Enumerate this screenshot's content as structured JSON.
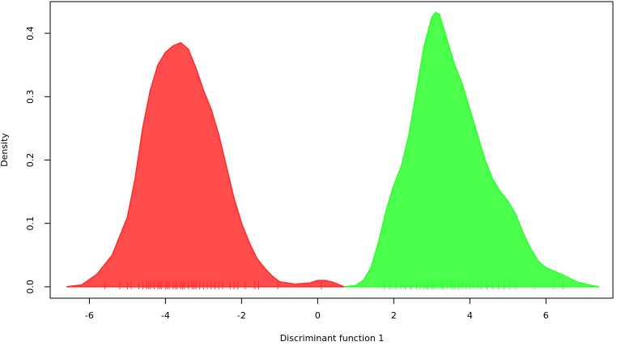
{
  "chart_data": {
    "type": "density",
    "xlabel": "Discriminant function 1",
    "ylabel": "Density",
    "xlim": [
      -7.03,
      7.76
    ],
    "ylim": [
      -0.018,
      0.45
    ],
    "xticks": [
      -6,
      -4,
      -2,
      0,
      2,
      4,
      6
    ],
    "yticks": [
      {
        "value": 0,
        "label": "0.0"
      },
      0.1,
      0.2,
      0.3,
      0.4
    ],
    "series": [
      {
        "color": "#ff4c4c",
        "stroke": "#ff2a2a",
        "x": [
          -6.6,
          -6.2,
          -5.8,
          -5.4,
          -5.0,
          -4.8,
          -4.6,
          -4.4,
          -4.2,
          -4.0,
          -3.8,
          -3.6,
          -3.4,
          -3.2,
          -3.0,
          -2.8,
          -2.6,
          -2.4,
          -2.2,
          -2.0,
          -1.8,
          -1.6,
          -1.4,
          -1.2,
          -1.0,
          -0.6,
          -0.2,
          0.0,
          0.2,
          0.4,
          0.7
        ],
        "values": [
          0.0,
          0.003,
          0.02,
          0.05,
          0.11,
          0.17,
          0.25,
          0.31,
          0.35,
          0.37,
          0.38,
          0.385,
          0.375,
          0.345,
          0.31,
          0.28,
          0.24,
          0.19,
          0.14,
          0.1,
          0.07,
          0.045,
          0.03,
          0.017,
          0.008,
          0.004,
          0.006,
          0.01,
          0.01,
          0.007,
          0.0
        ],
        "rug": [
          -5.6,
          -5.2,
          -5.0,
          -4.9,
          -4.7,
          -4.6,
          -4.5,
          -4.45,
          -4.4,
          -4.3,
          -4.2,
          -4.15,
          -4.1,
          -4.0,
          -3.95,
          -3.9,
          -3.8,
          -3.75,
          -3.7,
          -3.6,
          -3.55,
          -3.5,
          -3.4,
          -3.3,
          -3.25,
          -3.2,
          -3.1,
          -3.0,
          -2.9,
          -2.8,
          -2.7,
          -2.6,
          -2.5,
          -2.3,
          -2.2,
          -2.1,
          -1.9,
          -1.65,
          -1.55,
          -1.05,
          0.1
        ]
      },
      {
        "color": "#4cff4c",
        "stroke": "#2aff2a",
        "x": [
          0.7,
          1.0,
          1.2,
          1.4,
          1.6,
          1.8,
          2.0,
          2.2,
          2.4,
          2.6,
          2.8,
          3.0,
          3.1,
          3.2,
          3.4,
          3.6,
          3.8,
          4.0,
          4.2,
          4.4,
          4.6,
          4.8,
          5.0,
          5.2,
          5.4,
          5.6,
          5.8,
          6.0,
          6.4,
          6.8,
          7.2,
          7.4
        ],
        "values": [
          0.0,
          0.002,
          0.01,
          0.03,
          0.07,
          0.12,
          0.16,
          0.19,
          0.24,
          0.31,
          0.38,
          0.425,
          0.433,
          0.43,
          0.39,
          0.35,
          0.32,
          0.28,
          0.24,
          0.2,
          0.17,
          0.15,
          0.135,
          0.115,
          0.085,
          0.06,
          0.04,
          0.03,
          0.02,
          0.008,
          0.002,
          0.0
        ],
        "rug": [
          1.75,
          1.9,
          2.05,
          2.2,
          2.3,
          2.45,
          2.6,
          2.7,
          2.8,
          2.85,
          2.9,
          3.0,
          3.05,
          3.1,
          3.2,
          3.25,
          3.3,
          3.4,
          3.5,
          3.55,
          3.6,
          3.7,
          3.8,
          3.9,
          4.0,
          4.1,
          4.2,
          4.3,
          4.45,
          4.6,
          4.75,
          4.9,
          5.05,
          5.2,
          5.7,
          6.2,
          6.45
        ]
      }
    ]
  }
}
